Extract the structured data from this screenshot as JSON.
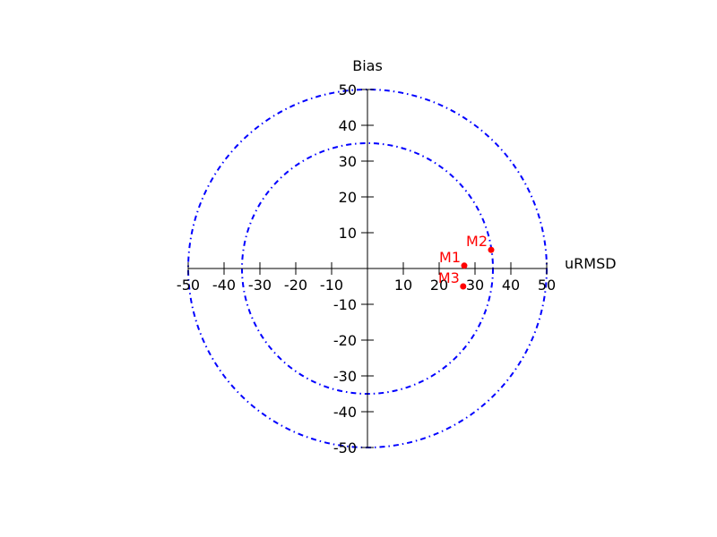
{
  "chart_data": {
    "type": "scatter",
    "title": "",
    "xlabel": "uRMSD",
    "ylabel": "Bias",
    "xlim": [
      -50,
      50
    ],
    "ylim": [
      -50,
      50
    ],
    "x_ticks": [
      -50,
      -40,
      -30,
      -20,
      -10,
      10,
      20,
      30,
      40,
      50
    ],
    "y_ticks": [
      -50,
      -40,
      -30,
      -20,
      -10,
      10,
      20,
      30,
      40,
      50
    ],
    "grid": false,
    "reference_circles": [
      {
        "radius": 35,
        "color": "#0000ff",
        "style": "dash-dot"
      },
      {
        "radius": 50,
        "color": "#0000ff",
        "style": "dash-dot"
      }
    ],
    "points": [
      {
        "label": "M1",
        "x": 27,
        "y": 0.8
      },
      {
        "label": "M2",
        "x": 34.5,
        "y": 5.2
      },
      {
        "label": "M3",
        "x": 26.7,
        "y": -5.0
      }
    ],
    "point_color": "#ff0000",
    "axis_color": "#000000"
  }
}
